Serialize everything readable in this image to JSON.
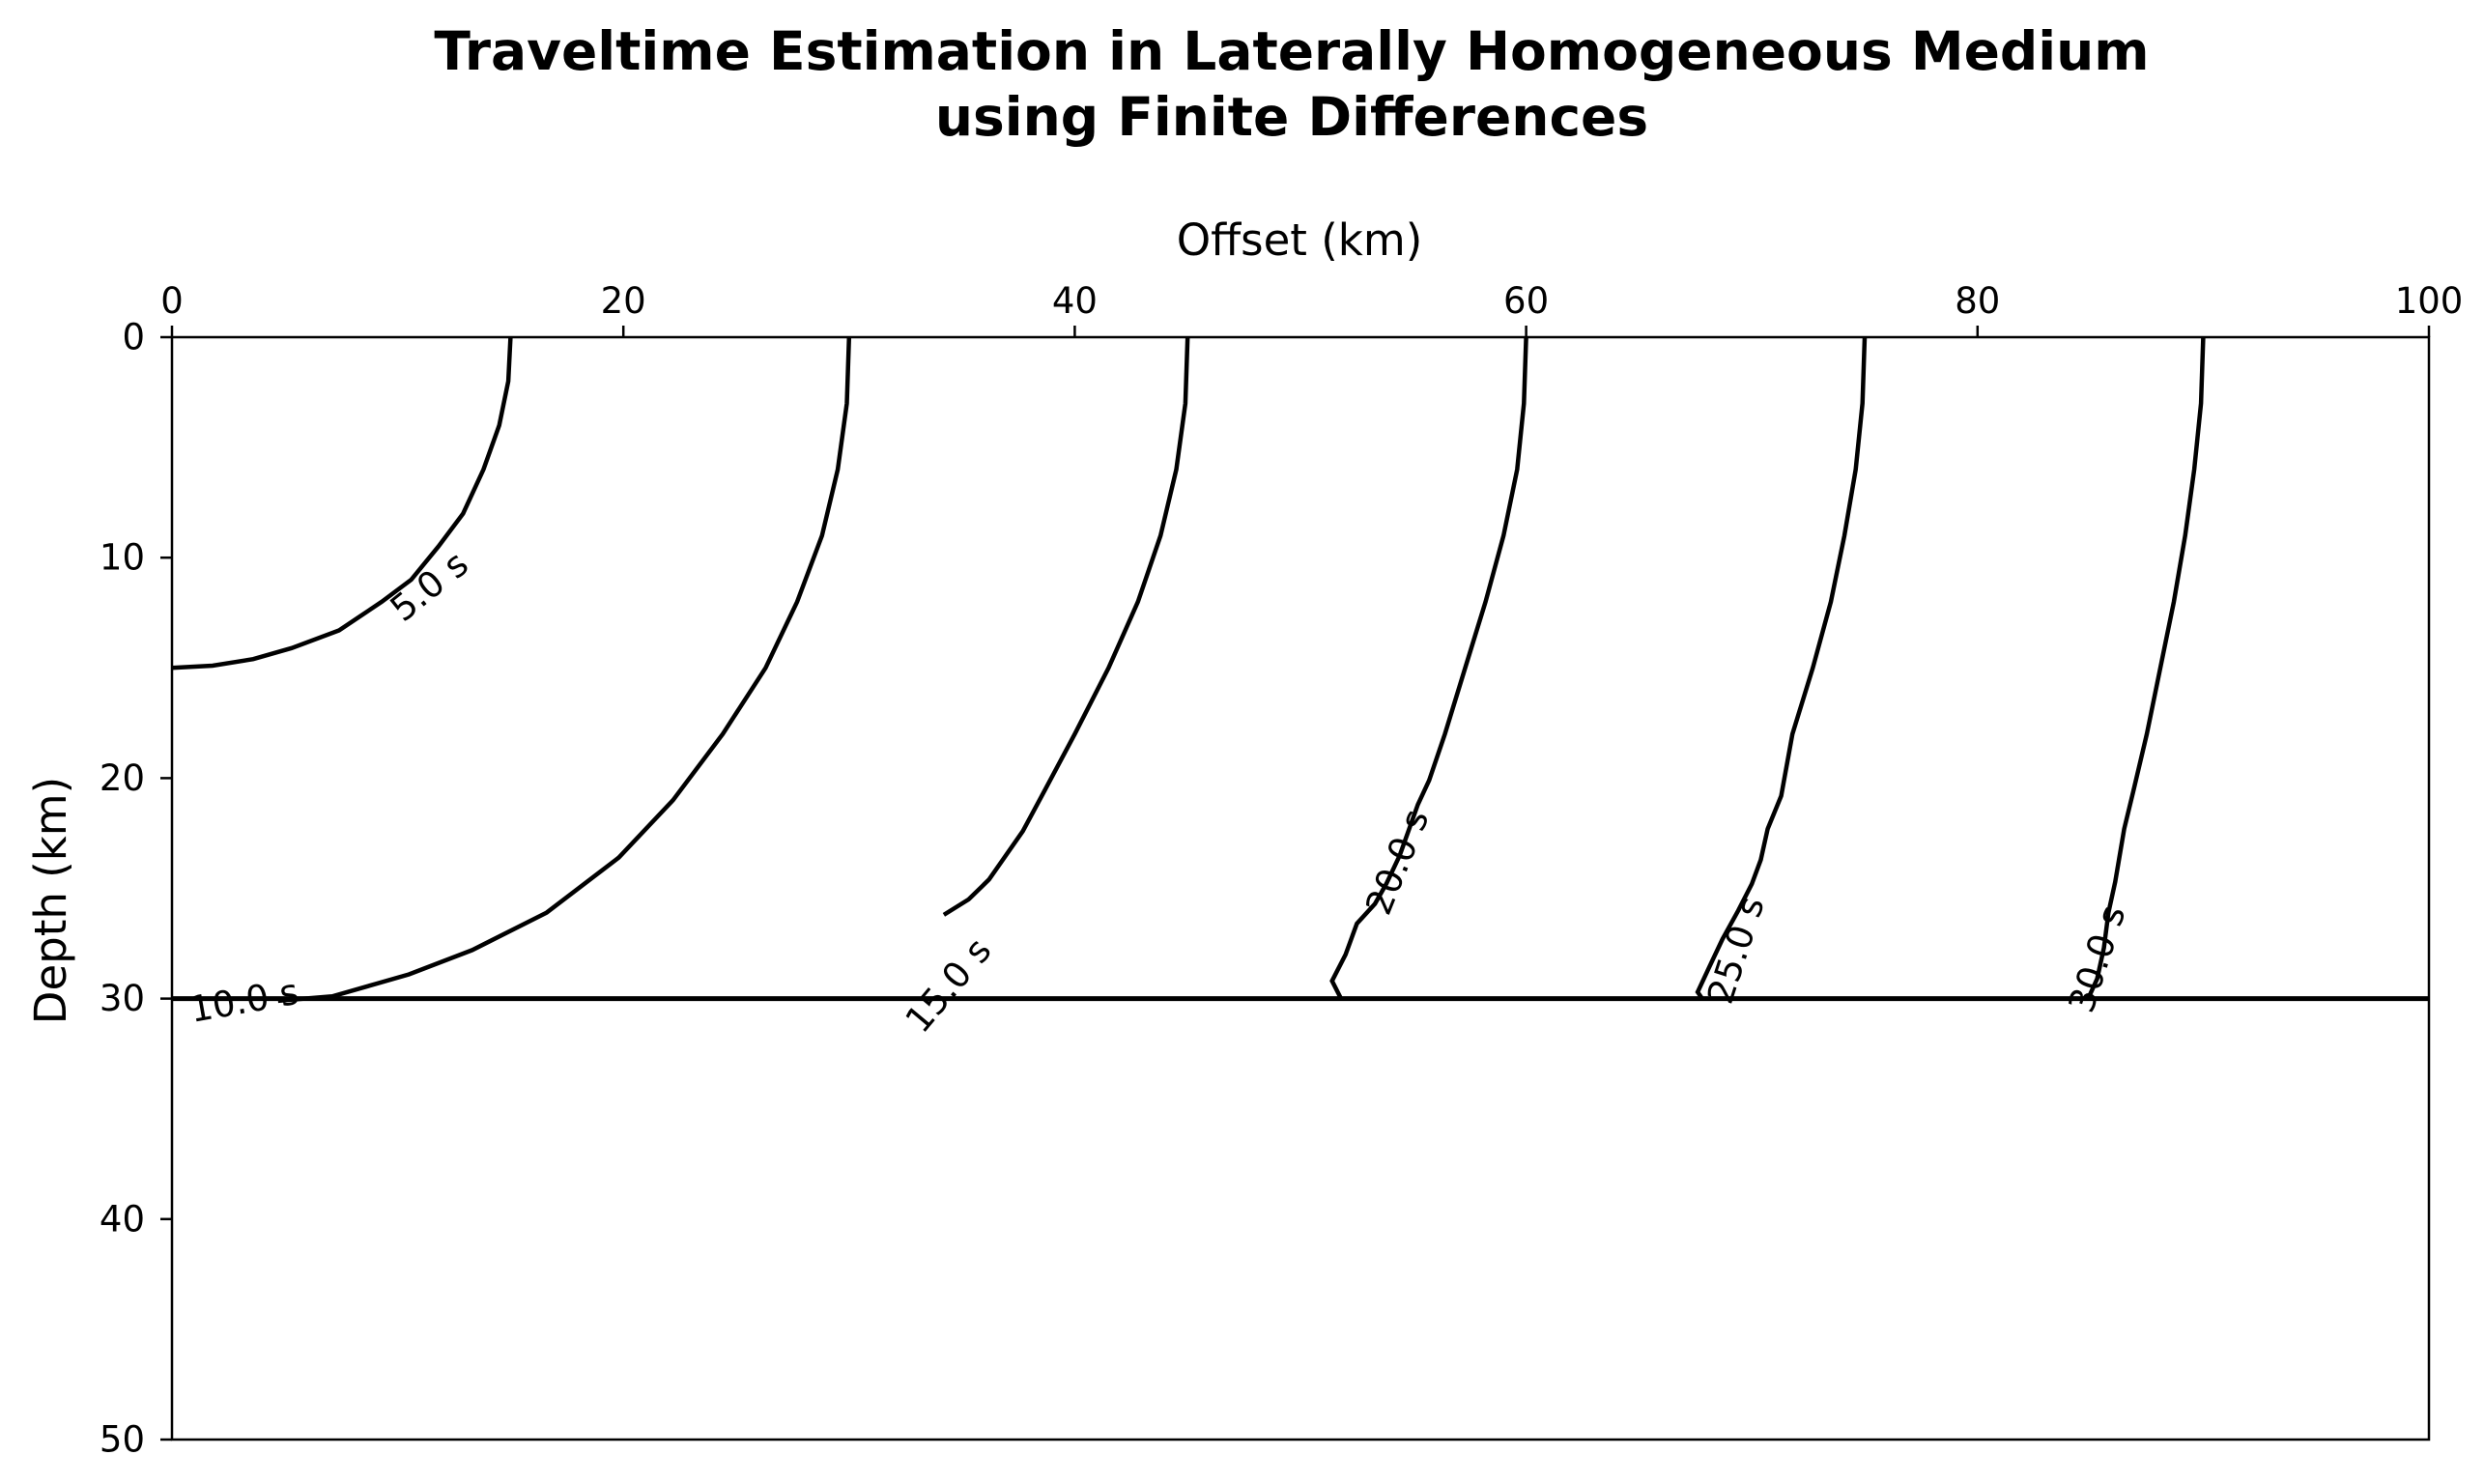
{
  "chart_data": {
    "type": "contour",
    "title_line1": "Traveltime Estimation in Laterally Homogeneous Medium",
    "title_line2": "using Finite Differences",
    "xlabel": "Offset (km)",
    "ylabel": "Depth (km)",
    "xlim": [
      0,
      100
    ],
    "ylim": [
      0,
      50
    ],
    "y_inverted": true,
    "x_axis_position": "top",
    "xticks": [
      0,
      20,
      40,
      60,
      80,
      100
    ],
    "yticks": [
      0,
      10,
      20,
      30,
      40,
      50
    ],
    "xtick_labels": [
      "0",
      "20",
      "40",
      "60",
      "80",
      "100"
    ],
    "ytick_labels": [
      "0",
      "10",
      "20",
      "30",
      "40",
      "50"
    ],
    "interface_depth": 30,
    "grid": false,
    "line_color": "#000000",
    "contours": [
      {
        "level": 5,
        "label": "5.0 s",
        "points": [
          [
            15,
            0
          ],
          [
            14.9,
            2
          ],
          [
            14.5,
            4
          ],
          [
            13.8,
            6
          ],
          [
            12.9,
            8
          ],
          [
            11.8,
            9.5
          ],
          [
            10.6,
            11
          ],
          [
            9.3,
            12
          ],
          [
            7.4,
            13.3
          ],
          [
            5.3,
            14.1
          ],
          [
            3.6,
            14.6
          ],
          [
            1.8,
            14.9
          ],
          [
            0,
            15
          ]
        ],
        "label_at": [
          11.4,
          11.3
        ],
        "label_rot": -39
      },
      {
        "level": 10,
        "label": "10.0 s",
        "points": [
          [
            30,
            0
          ],
          [
            29.9,
            3
          ],
          [
            29.5,
            6
          ],
          [
            28.8,
            9
          ],
          [
            27.7,
            12
          ],
          [
            26.3,
            15
          ],
          [
            24.4,
            18
          ],
          [
            22.2,
            21
          ],
          [
            19.8,
            23.6
          ],
          [
            16.6,
            26.1
          ],
          [
            13.3,
            27.8
          ],
          [
            10.5,
            28.9
          ],
          [
            7.1,
            29.9
          ],
          [
            4.7,
            30.1
          ]
        ],
        "label_at": [
          3.2,
          30.1
        ],
        "label_rot": -10
      },
      {
        "level": 15,
        "label": "15.0 s",
        "points": [
          [
            45,
            0
          ],
          [
            44.9,
            3
          ],
          [
            44.5,
            6
          ],
          [
            43.8,
            9
          ],
          [
            42.8,
            12
          ],
          [
            41.5,
            15
          ],
          [
            40,
            18
          ],
          [
            38.7,
            20.5
          ],
          [
            37.7,
            22.4
          ],
          [
            36.2,
            24.6
          ],
          [
            35.3,
            25.5
          ],
          [
            34.2,
            26.2
          ]
        ],
        "label_at": [
          34.4,
          29.4
        ],
        "label_rot": -50
      },
      {
        "level": 20,
        "label": "20.0 s",
        "points": [
          [
            60,
            0
          ],
          [
            59.9,
            3
          ],
          [
            59.6,
            6
          ],
          [
            59,
            9
          ],
          [
            58.2,
            12
          ],
          [
            57.3,
            15
          ],
          [
            56.4,
            18
          ],
          [
            55.7,
            20.1
          ],
          [
            55.2,
            21.2
          ],
          [
            54.4,
            23.5
          ],
          [
            53.8,
            24.8
          ],
          [
            53.3,
            25.7
          ],
          [
            52.5,
            26.6
          ],
          [
            52,
            28
          ],
          [
            51.4,
            29.2
          ],
          [
            51.8,
            30
          ]
        ],
        "label_at": [
          54.3,
          23.8
        ],
        "label_rot": -68
      },
      {
        "level": 25,
        "label": "25.0 s",
        "points": [
          [
            75,
            0
          ],
          [
            74.9,
            3
          ],
          [
            74.6,
            6
          ],
          [
            74.1,
            9
          ],
          [
            73.5,
            12
          ],
          [
            72.7,
            15
          ],
          [
            71.8,
            18
          ],
          [
            71.3,
            20.8
          ],
          [
            70.7,
            22.3
          ],
          [
            70.4,
            23.7
          ],
          [
            70,
            24.8
          ],
          [
            69.4,
            26
          ],
          [
            68.7,
            27.3
          ],
          [
            68.1,
            28.6
          ],
          [
            67.6,
            29.7
          ],
          [
            67.8,
            30
          ]
        ],
        "label_at": [
          69.3,
          27.8
        ],
        "label_rot": -72
      },
      {
        "level": 30,
        "label": "30.0 s",
        "points": [
          [
            90,
            0
          ],
          [
            89.9,
            3
          ],
          [
            89.6,
            6
          ],
          [
            89.2,
            9
          ],
          [
            88.7,
            12
          ],
          [
            88.1,
            15
          ],
          [
            87.5,
            18
          ],
          [
            86.9,
            20.6
          ],
          [
            86.5,
            22.3
          ],
          [
            86.1,
            24.7
          ],
          [
            85.8,
            26.1
          ],
          [
            85.6,
            27.7
          ],
          [
            85.3,
            29.1
          ],
          [
            84.9,
            30
          ]
        ],
        "label_at": [
          85.3,
          28.2
        ],
        "label_rot": -72
      }
    ]
  }
}
